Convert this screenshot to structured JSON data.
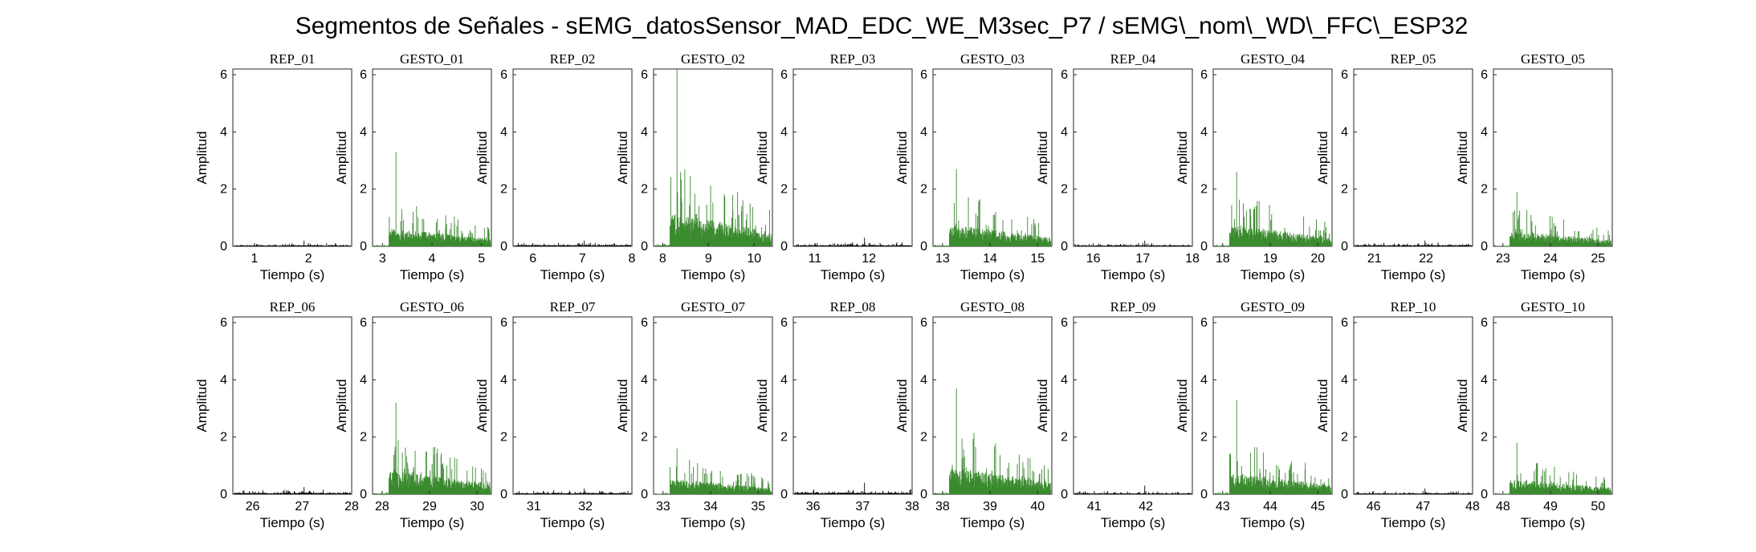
{
  "figure": {
    "title": "Segmentos de Señales - sEMG_datosSensor_MAD_EDC_WE_M3sec_P7 / sEMG\\_nom\\_WD\\_FFC\\_ESP32",
    "colors": {
      "rep": "#000000",
      "gesto": "#3a8a2e",
      "axes": "#262626"
    }
  },
  "chart_data": [
    {
      "type": "area",
      "title": "REP_01",
      "kind": "rep",
      "xlabel": "Tiempo (s)",
      "ylabel": "Amplitud",
      "xlim": [
        0.6,
        2.8
      ],
      "ylim": [
        0,
        6.2
      ],
      "xticks": [
        1,
        2
      ],
      "yticks": [
        0,
        2,
        4,
        6
      ],
      "peak": 0.2,
      "base": 0.05
    },
    {
      "type": "area",
      "title": "GESTO_01",
      "kind": "gesto",
      "xlabel": "Tiempo (s)",
      "ylabel": "Amplitud",
      "xlim": [
        2.8,
        5.2
      ],
      "ylim": [
        0,
        6.2
      ],
      "xticks": [
        3,
        4,
        5
      ],
      "yticks": [
        0,
        2,
        4,
        6
      ],
      "peak": 3.3,
      "base": 0.6
    },
    {
      "type": "area",
      "title": "REP_02",
      "kind": "rep",
      "xlabel": "Tiempo (s)",
      "ylabel": "Amplitud",
      "xlim": [
        5.6,
        8.0
      ],
      "ylim": [
        0,
        6.2
      ],
      "xticks": [
        6,
        7,
        8
      ],
      "yticks": [
        0,
        2,
        4,
        6
      ],
      "peak": 0.2,
      "base": 0.06
    },
    {
      "type": "area",
      "title": "GESTO_02",
      "kind": "gesto",
      "xlabel": "Tiempo (s)",
      "ylabel": "Amplitud",
      "xlim": [
        7.8,
        10.4
      ],
      "ylim": [
        0,
        6.2
      ],
      "xticks": [
        8,
        9,
        10
      ],
      "yticks": [
        0,
        2,
        4,
        6
      ],
      "peak": 6.2,
      "base": 1.1
    },
    {
      "type": "area",
      "title": "REP_03",
      "kind": "rep",
      "xlabel": "Tiempo (s)",
      "ylabel": "Amplitud",
      "xlim": [
        10.6,
        12.8
      ],
      "ylim": [
        0,
        6.2
      ],
      "xticks": [
        11,
        12
      ],
      "yticks": [
        0,
        2,
        4,
        6
      ],
      "peak": 0.3,
      "base": 0.06
    },
    {
      "type": "area",
      "title": "GESTO_03",
      "kind": "gesto",
      "xlabel": "Tiempo (s)",
      "ylabel": "Amplitud",
      "xlim": [
        12.8,
        15.3
      ],
      "ylim": [
        0,
        6.2
      ],
      "xticks": [
        13,
        14,
        15
      ],
      "yticks": [
        0,
        2,
        4,
        6
      ],
      "peak": 2.7,
      "base": 0.7
    },
    {
      "type": "area",
      "title": "REP_04",
      "kind": "rep",
      "xlabel": "Tiempo (s)",
      "ylabel": "Amplitud",
      "xlim": [
        15.6,
        18.0
      ],
      "ylim": [
        0,
        6.2
      ],
      "xticks": [
        16,
        17,
        18
      ],
      "yticks": [
        0,
        2,
        4,
        6
      ],
      "peak": 0.2,
      "base": 0.05
    },
    {
      "type": "area",
      "title": "GESTO_04",
      "kind": "gesto",
      "xlabel": "Tiempo (s)",
      "ylabel": "Amplitud",
      "xlim": [
        17.8,
        20.3
      ],
      "ylim": [
        0,
        6.2
      ],
      "xticks": [
        18,
        19,
        20
      ],
      "yticks": [
        0,
        2,
        4,
        6
      ],
      "peak": 2.6,
      "base": 0.7
    },
    {
      "type": "area",
      "title": "REP_05",
      "kind": "rep",
      "xlabel": "Tiempo (s)",
      "ylabel": "Amplitud",
      "xlim": [
        20.6,
        22.9
      ],
      "ylim": [
        0,
        6.2
      ],
      "xticks": [
        21,
        22
      ],
      "yticks": [
        0,
        2,
        4,
        6
      ],
      "peak": 0.2,
      "base": 0.06
    },
    {
      "type": "area",
      "title": "GESTO_05",
      "kind": "gesto",
      "xlabel": "Tiempo (s)",
      "ylabel": "Amplitud",
      "xlim": [
        22.8,
        25.3
      ],
      "ylim": [
        0,
        6.2
      ],
      "xticks": [
        23,
        24,
        25
      ],
      "yticks": [
        0,
        2,
        4,
        6
      ],
      "peak": 1.9,
      "base": 0.5
    },
    {
      "type": "area",
      "title": "REP_06",
      "kind": "rep",
      "xlabel": "Tiempo (s)",
      "ylabel": "Amplitud",
      "xlim": [
        25.6,
        28.0
      ],
      "ylim": [
        0,
        6.2
      ],
      "xticks": [
        26,
        27,
        28
      ],
      "yticks": [
        0,
        2,
        4,
        6
      ],
      "peak": 0.25,
      "base": 0.07
    },
    {
      "type": "area",
      "title": "GESTO_06",
      "kind": "gesto",
      "xlabel": "Tiempo (s)",
      "ylabel": "Amplitud",
      "xlim": [
        27.8,
        30.3
      ],
      "ylim": [
        0,
        6.2
      ],
      "xticks": [
        28,
        29,
        30
      ],
      "yticks": [
        0,
        2,
        4,
        6
      ],
      "peak": 3.2,
      "base": 0.8
    },
    {
      "type": "area",
      "title": "REP_07",
      "kind": "rep",
      "xlabel": "Tiempo (s)",
      "ylabel": "Amplitud",
      "xlim": [
        30.6,
        32.9
      ],
      "ylim": [
        0,
        6.2
      ],
      "xticks": [
        31,
        32
      ],
      "yticks": [
        0,
        2,
        4,
        6
      ],
      "peak": 0.2,
      "base": 0.06
    },
    {
      "type": "area",
      "title": "GESTO_07",
      "kind": "gesto",
      "xlabel": "Tiempo (s)",
      "ylabel": "Amplitud",
      "xlim": [
        32.8,
        35.3
      ],
      "ylim": [
        0,
        6.2
      ],
      "xticks": [
        33,
        34,
        35
      ],
      "yticks": [
        0,
        2,
        4,
        6
      ],
      "peak": 1.6,
      "base": 0.5
    },
    {
      "type": "area",
      "title": "REP_08",
      "kind": "rep",
      "xlabel": "Tiempo (s)",
      "ylabel": "Amplitud",
      "xlim": [
        35.6,
        38.0
      ],
      "ylim": [
        0,
        6.2
      ],
      "xticks": [
        36,
        37,
        38
      ],
      "yticks": [
        0,
        2,
        4,
        6
      ],
      "peak": 0.4,
      "base": 0.08
    },
    {
      "type": "area",
      "title": "GESTO_08",
      "kind": "gesto",
      "xlabel": "Tiempo (s)",
      "ylabel": "Amplitud",
      "xlim": [
        37.8,
        40.3
      ],
      "ylim": [
        0,
        6.2
      ],
      "xticks": [
        38,
        39,
        40
      ],
      "yticks": [
        0,
        2,
        4,
        6
      ],
      "peak": 3.7,
      "base": 0.9
    },
    {
      "type": "area",
      "title": "REP_09",
      "kind": "rep",
      "xlabel": "Tiempo (s)",
      "ylabel": "Amplitud",
      "xlim": [
        40.6,
        42.9
      ],
      "ylim": [
        0,
        6.2
      ],
      "xticks": [
        41,
        42
      ],
      "yticks": [
        0,
        2,
        4,
        6
      ],
      "peak": 0.3,
      "base": 0.05
    },
    {
      "type": "area",
      "title": "GESTO_09",
      "kind": "gesto",
      "xlabel": "Tiempo (s)",
      "ylabel": "Amplitud",
      "xlim": [
        42.8,
        45.3
      ],
      "ylim": [
        0,
        6.2
      ],
      "xticks": [
        43,
        44,
        45
      ],
      "yticks": [
        0,
        2,
        4,
        6
      ],
      "peak": 3.3,
      "base": 0.7
    },
    {
      "type": "area",
      "title": "REP_10",
      "kind": "rep",
      "xlabel": "Tiempo (s)",
      "ylabel": "Amplitud",
      "xlim": [
        45.6,
        48.0
      ],
      "ylim": [
        0,
        6.2
      ],
      "xticks": [
        46,
        47,
        48
      ],
      "yticks": [
        0,
        2,
        4,
        6
      ],
      "peak": 0.2,
      "base": 0.05
    },
    {
      "type": "area",
      "title": "GESTO_10",
      "kind": "gesto",
      "xlabel": "Tiempo (s)",
      "ylabel": "Amplitud",
      "xlim": [
        47.8,
        50.3
      ],
      "ylim": [
        0,
        6.2
      ],
      "xticks": [
        48,
        49,
        50
      ],
      "yticks": [
        0,
        2,
        4,
        6
      ],
      "peak": 1.8,
      "base": 0.5
    }
  ]
}
